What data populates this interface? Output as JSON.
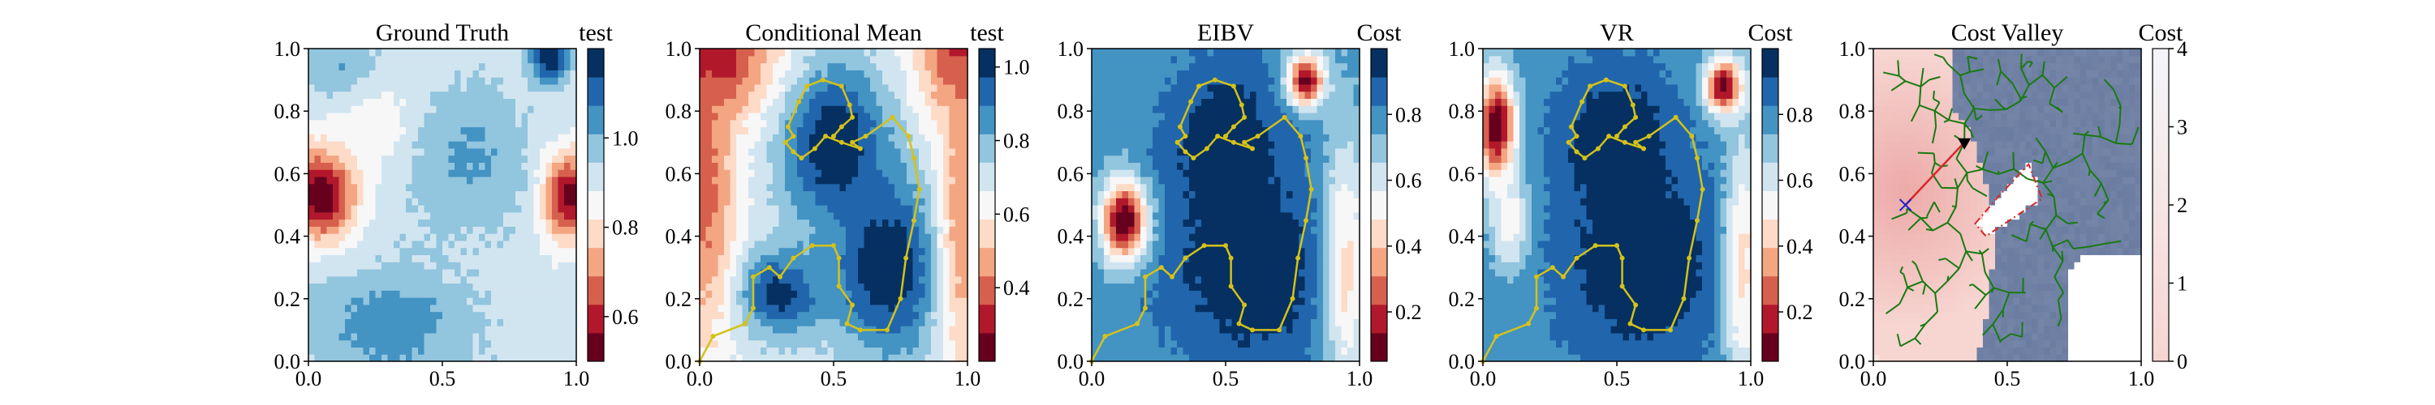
{
  "chart_data": [
    {
      "type": "heatmap",
      "title": "Ground Truth",
      "colorbar_label": "test",
      "colormap": "RdBu",
      "x_ticks": [
        "0.0",
        "0.5",
        "1.0"
      ],
      "y_ticks": [
        "0.0",
        "0.2",
        "0.4",
        "0.6",
        "0.8",
        "1.0"
      ],
      "xlim": [
        0,
        1
      ],
      "ylim": [
        0,
        1
      ],
      "colorbar_range": [
        0.5,
        1.2
      ],
      "colorbar_ticks": [
        "0.6",
        "0.8",
        "1.0"
      ],
      "colorbar_tick_values": [
        0.6,
        0.8,
        1.0
      ],
      "features": [
        {
          "x": 0.05,
          "y": 0.54,
          "value": 0.5,
          "sx": 0.09,
          "sy": 0.11
        },
        {
          "x": 0.97,
          "y": 0.53,
          "value": 0.52,
          "sx": 0.07,
          "sy": 0.1
        },
        {
          "x": 0.9,
          "y": 0.97,
          "value": 1.2,
          "sx": 0.05,
          "sy": 0.05
        },
        {
          "x": 0.25,
          "y": 0.75,
          "value": 0.82,
          "sx": 0.12,
          "sy": 0.1
        },
        {
          "x": 0.6,
          "y": 0.65,
          "value": 1.02,
          "sx": 0.15,
          "sy": 0.15
        },
        {
          "x": 0.3,
          "y": 0.12,
          "value": 1.05,
          "sx": 0.2,
          "sy": 0.12
        },
        {
          "x": 0.1,
          "y": 0.95,
          "value": 1.0,
          "sx": 0.1,
          "sy": 0.08
        }
      ],
      "base_value": 0.92
    },
    {
      "type": "heatmap",
      "title": "Conditional Mean",
      "colorbar_label": "test",
      "colormap": "RdBu",
      "x_ticks": [
        "0.0",
        "0.5",
        "1.0"
      ],
      "y_ticks": [
        "0.0",
        "0.2",
        "0.4",
        "0.6",
        "0.8",
        "1.0"
      ],
      "xlim": [
        0,
        1
      ],
      "ylim": [
        0,
        1
      ],
      "colorbar_range": [
        0.2,
        1.05
      ],
      "colorbar_ticks": [
        "0.4",
        "0.6",
        "0.8",
        "1.0"
      ],
      "colorbar_tick_values": [
        0.4,
        0.6,
        0.8,
        1.0
      ],
      "features": [
        {
          "x": 0.5,
          "y": 0.7,
          "value": 1.05,
          "sx": 0.14,
          "sy": 0.18
        },
        {
          "x": 0.7,
          "y": 0.3,
          "value": 1.05,
          "sx": 0.14,
          "sy": 0.2
        },
        {
          "x": 0.3,
          "y": 0.22,
          "value": 1.0,
          "sx": 0.12,
          "sy": 0.1
        },
        {
          "x": 0.0,
          "y": 1.0,
          "value": 0.2,
          "sx": 0.18,
          "sy": 0.15
        },
        {
          "x": 1.0,
          "y": 1.0,
          "value": 0.25,
          "sx": 0.12,
          "sy": 0.15
        },
        {
          "x": 0.02,
          "y": 0.55,
          "value": 0.4,
          "sx": 0.08,
          "sy": 0.35
        },
        {
          "x": 0.98,
          "y": 0.5,
          "value": 0.45,
          "sx": 0.06,
          "sy": 0.4
        }
      ],
      "base_value": 0.68,
      "path": [
        [
          0.0,
          0.0
        ],
        [
          0.05,
          0.08
        ],
        [
          0.17,
          0.12
        ],
        [
          0.2,
          0.17
        ],
        [
          0.2,
          0.27
        ],
        [
          0.26,
          0.3
        ],
        [
          0.3,
          0.27
        ],
        [
          0.35,
          0.33
        ],
        [
          0.42,
          0.37
        ],
        [
          0.5,
          0.37
        ],
        [
          0.52,
          0.33
        ],
        [
          0.52,
          0.24
        ],
        [
          0.57,
          0.18
        ],
        [
          0.55,
          0.12
        ],
        [
          0.6,
          0.1
        ],
        [
          0.7,
          0.1
        ],
        [
          0.75,
          0.2
        ],
        [
          0.77,
          0.33
        ],
        [
          0.8,
          0.45
        ],
        [
          0.82,
          0.55
        ],
        [
          0.8,
          0.65
        ],
        [
          0.78,
          0.72
        ],
        [
          0.72,
          0.78
        ],
        [
          0.62,
          0.72
        ],
        [
          0.57,
          0.7
        ],
        [
          0.6,
          0.68
        ],
        [
          0.53,
          0.7
        ],
        [
          0.47,
          0.72
        ],
        [
          0.43,
          0.68
        ],
        [
          0.38,
          0.65
        ],
        [
          0.35,
          0.67
        ],
        [
          0.32,
          0.7
        ],
        [
          0.35,
          0.72
        ],
        [
          0.33,
          0.75
        ],
        [
          0.37,
          0.83
        ],
        [
          0.4,
          0.88
        ],
        [
          0.46,
          0.9
        ],
        [
          0.53,
          0.88
        ],
        [
          0.56,
          0.82
        ],
        [
          0.57,
          0.78
        ],
        [
          0.53,
          0.75
        ],
        [
          0.5,
          0.72
        ]
      ]
    },
    {
      "type": "heatmap",
      "title": "EIBV",
      "colorbar_label": "Cost",
      "colormap": "RdBu",
      "x_ticks": [
        "0.0",
        "0.5",
        "1.0"
      ],
      "y_ticks": [
        "0.0",
        "0.2",
        "0.4",
        "0.6",
        "0.8",
        "1.0"
      ],
      "xlim": [
        0,
        1
      ],
      "ylim": [
        0,
        1
      ],
      "colorbar_range": [
        0.05,
        1.0
      ],
      "colorbar_ticks": [
        "0.2",
        "0.4",
        "0.6",
        "0.8"
      ],
      "colorbar_tick_values": [
        0.2,
        0.4,
        0.6,
        0.8
      ],
      "features": [
        {
          "x": 0.5,
          "y": 0.7,
          "value": 1.0,
          "sx": 0.15,
          "sy": 0.18
        },
        {
          "x": 0.6,
          "y": 0.3,
          "value": 1.0,
          "sx": 0.22,
          "sy": 0.22
        },
        {
          "x": 0.12,
          "y": 0.45,
          "value": 0.05,
          "sx": 0.06,
          "sy": 0.09
        },
        {
          "x": 0.8,
          "y": 0.9,
          "value": 0.1,
          "sx": 0.05,
          "sy": 0.06
        },
        {
          "x": 0.95,
          "y": 0.3,
          "value": 0.45,
          "sx": 0.06,
          "sy": 0.3
        }
      ],
      "base_value": 0.78
    },
    {
      "type": "heatmap",
      "title": "VR",
      "colorbar_label": "Cost",
      "colormap": "RdBu",
      "x_ticks": [
        "0.0",
        "0.5",
        "1.0"
      ],
      "y_ticks": [
        "0.0",
        "0.2",
        "0.4",
        "0.6",
        "0.8",
        "1.0"
      ],
      "xlim": [
        0,
        1
      ],
      "ylim": [
        0,
        1
      ],
      "colorbar_range": [
        0.05,
        1.0
      ],
      "colorbar_ticks": [
        "0.2",
        "0.4",
        "0.6",
        "0.8"
      ],
      "colorbar_tick_values": [
        0.2,
        0.4,
        0.6,
        0.8
      ],
      "features": [
        {
          "x": 0.5,
          "y": 0.7,
          "value": 1.0,
          "sx": 0.15,
          "sy": 0.18
        },
        {
          "x": 0.6,
          "y": 0.3,
          "value": 1.0,
          "sx": 0.22,
          "sy": 0.22
        },
        {
          "x": 0.05,
          "y": 0.75,
          "value": 0.05,
          "sx": 0.05,
          "sy": 0.12
        },
        {
          "x": 0.9,
          "y": 0.88,
          "value": 0.05,
          "sx": 0.05,
          "sy": 0.06
        },
        {
          "x": 0.1,
          "y": 0.45,
          "value": 0.5,
          "sx": 0.05,
          "sy": 0.1
        },
        {
          "x": 0.97,
          "y": 0.3,
          "value": 0.45,
          "sx": 0.05,
          "sy": 0.3
        }
      ],
      "base_value": 0.78
    },
    {
      "type": "heatmap",
      "title": "Cost Valley",
      "colorbar_label": "Cost",
      "colormap": "Reds_to_Blues_light",
      "x_ticks": [
        "0.0",
        "0.5",
        "1.0"
      ],
      "y_ticks": [
        "0.0",
        "0.2",
        "0.4",
        "0.6",
        "0.8",
        "1.0"
      ],
      "xlim": [
        0,
        1
      ],
      "ylim": [
        0,
        1
      ],
      "colorbar_range": [
        0,
        4
      ],
      "colorbar_ticks": [
        "0",
        "1",
        "2",
        "3",
        "4"
      ],
      "colorbar_tick_values": [
        0,
        1,
        2,
        3,
        4
      ],
      "current_location": [
        0.34,
        0.7
      ],
      "next_location": [
        0.12,
        0.5
      ],
      "budget_ellipse_center": [
        0.5,
        0.52
      ],
      "obstacle_polygon": [
        [
          0.38,
          0.44
        ],
        [
          0.47,
          0.53
        ],
        [
          0.58,
          0.63
        ],
        [
          0.63,
          0.52
        ],
        [
          0.42,
          0.4
        ]
      ]
    }
  ],
  "colors": {
    "rdbu": [
      "#67001f",
      "#b2182b",
      "#d6604d",
      "#f4a582",
      "#fddbc7",
      "#f7f7f7",
      "#d1e5f0",
      "#92c5de",
      "#4393c3",
      "#2166ac",
      "#053061"
    ],
    "path": "#d4c21a",
    "tree": "#1a7a12",
    "valley_low": "#f7d6d2",
    "valley_high": "#6a7ca0",
    "marker_next": "#2222cc",
    "marker_current": "#000000",
    "obstacle_line": "#d62728"
  }
}
